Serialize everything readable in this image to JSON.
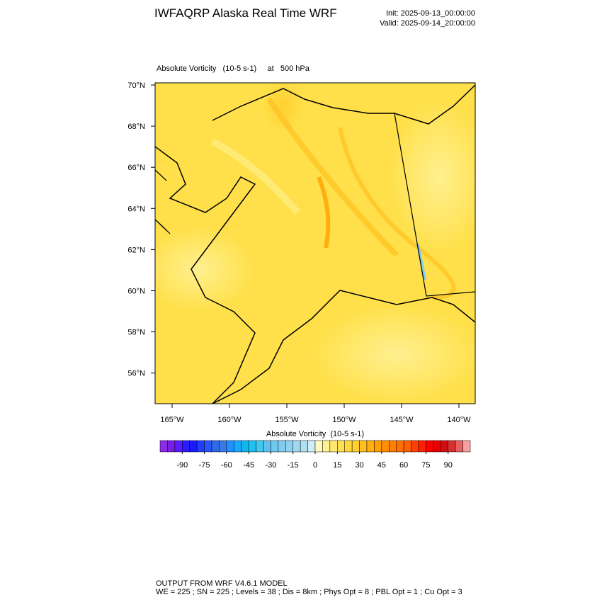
{
  "header": {
    "title": "IWFAQRP Alaska Real Time WRF",
    "init": "Init: 2025-09-13_00:00:00",
    "valid": "Valid: 2025-09-14_20:00:00"
  },
  "map": {
    "subtitle": "Absolute Vorticity   (10-5 s-1)     at   500 hPa",
    "lat_labels": [
      "70°N",
      "68°N",
      "66°N",
      "64°N",
      "62°N",
      "60°N",
      "58°N",
      "56°N"
    ],
    "lon_labels": [
      "165°W",
      "160°W",
      "155°W",
      "150°W",
      "145°W",
      "140°W"
    ]
  },
  "colorbar": {
    "title": "Absolute Vorticity  (10-5 s-1)",
    "lim": [
      -105,
      105
    ],
    "ticks": [
      -90,
      -75,
      -60,
      -45,
      -30,
      -15,
      0,
      15,
      30,
      45,
      60,
      75,
      90
    ],
    "colors": [
      "#8b2be2",
      "#7a1fe8",
      "#5b1aff",
      "#2d1aff",
      "#1a1aff",
      "#1f3fff",
      "#2855ff",
      "#2f6be8",
      "#3a7ae8",
      "#1e90ff",
      "#1aa8ff",
      "#10b8f0",
      "#20c0f0",
      "#40c8f0",
      "#60c0f0",
      "#70c8f0",
      "#80ccf0",
      "#90d0f0",
      "#a0d8f0",
      "#b0e0f0",
      "#d0eef8",
      "#fffac0",
      "#fff090",
      "#ffe870",
      "#ffe050",
      "#ffd840",
      "#ffd030",
      "#ffc020",
      "#ffb010",
      "#ffa000",
      "#ff9000",
      "#ff8000",
      "#ff7000",
      "#ff6000",
      "#ff4000",
      "#ff2000",
      "#ff0000",
      "#e80000",
      "#d01010",
      "#d83030",
      "#e86060",
      "#f8a0a0"
    ]
  },
  "footer": {
    "line1": "OUTPUT FROM WRF V4.6.1 MODEL",
    "line2": "WE = 225 ; SN = 225 ; Levels = 38 ; Dis = 8km ; Phys Opt = 8 ; PBL Opt = 1 ; Cu Opt = 3"
  }
}
